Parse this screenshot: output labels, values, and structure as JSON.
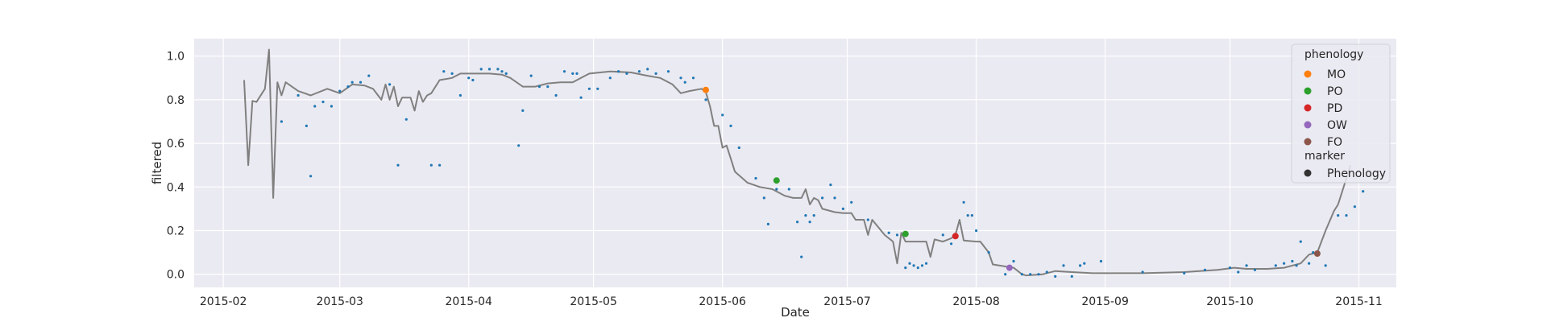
{
  "chart_data": {
    "type": "scatter",
    "xlabel": "Date",
    "ylabel": "filtered",
    "x_range": [
      "2015-01-25",
      "2015-11-10"
    ],
    "ylim": [
      -0.06,
      1.08
    ],
    "x_ticks": [
      "2015-02-01",
      "2015-03-01",
      "2015-04-01",
      "2015-05-01",
      "2015-06-01",
      "2015-07-01",
      "2015-08-01",
      "2015-09-01",
      "2015-10-01",
      "2015-11-01"
    ],
    "x_tick_labels": [
      "2015-02",
      "2015-03",
      "2015-04",
      "2015-05",
      "2015-06",
      "2015-07",
      "2015-08",
      "2015-09",
      "2015-10",
      "2015-11"
    ],
    "y_ticks": [
      0.0,
      0.2,
      0.4,
      0.6,
      0.8,
      1.0
    ],
    "y_tick_labels": [
      "0.0",
      "0.2",
      "0.4",
      "0.6",
      "0.8",
      "1.0"
    ],
    "grid": true,
    "legend_position": "top-right",
    "colors": {
      "background": "#eaeaf2",
      "grid": "#ffffff",
      "line": "#808080",
      "points": "#1f77b4"
    },
    "line_series": {
      "color": "#808080",
      "points": [
        [
          "2015-02-06",
          0.89
        ],
        [
          "2015-02-07",
          0.5
        ],
        [
          "2015-02-08",
          0.795
        ],
        [
          "2015-02-09",
          0.79
        ],
        [
          "2015-02-11",
          0.85
        ],
        [
          "2015-02-12",
          1.03
        ],
        [
          "2015-02-13",
          0.35
        ],
        [
          "2015-02-14",
          0.88
        ],
        [
          "2015-02-15",
          0.82
        ],
        [
          "2015-02-16",
          0.88
        ],
        [
          "2015-02-19",
          0.84
        ],
        [
          "2015-02-22",
          0.82
        ],
        [
          "2015-02-26",
          0.85
        ],
        [
          "2015-03-01",
          0.83
        ],
        [
          "2015-03-04",
          0.87
        ],
        [
          "2015-03-07",
          0.865
        ],
        [
          "2015-03-09",
          0.85
        ],
        [
          "2015-03-11",
          0.8
        ],
        [
          "2015-03-12",
          0.87
        ],
        [
          "2015-03-13",
          0.8
        ],
        [
          "2015-03-14",
          0.86
        ],
        [
          "2015-03-15",
          0.77
        ],
        [
          "2015-03-16",
          0.81
        ],
        [
          "2015-03-18",
          0.81
        ],
        [
          "2015-03-19",
          0.75
        ],
        [
          "2015-03-20",
          0.84
        ],
        [
          "2015-03-21",
          0.79
        ],
        [
          "2015-03-22",
          0.82
        ],
        [
          "2015-03-23",
          0.83
        ],
        [
          "2015-03-25",
          0.89
        ],
        [
          "2015-03-28",
          0.9
        ],
        [
          "2015-03-30",
          0.92
        ],
        [
          "2015-04-03",
          0.92
        ],
        [
          "2015-04-06",
          0.92
        ],
        [
          "2015-04-09",
          0.915
        ],
        [
          "2015-04-11",
          0.9
        ],
        [
          "2015-04-14",
          0.86
        ],
        [
          "2015-04-17",
          0.86
        ],
        [
          "2015-04-20",
          0.875
        ],
        [
          "2015-04-23",
          0.88
        ],
        [
          "2015-04-26",
          0.88
        ],
        [
          "2015-04-28",
          0.9
        ],
        [
          "2015-04-30",
          0.92
        ],
        [
          "2015-05-05",
          0.93
        ],
        [
          "2015-05-10",
          0.925
        ],
        [
          "2015-05-14",
          0.91
        ],
        [
          "2015-05-17",
          0.9
        ],
        [
          "2015-05-20",
          0.87
        ],
        [
          "2015-05-22",
          0.83
        ],
        [
          "2015-05-24",
          0.84
        ],
        [
          "2015-05-27",
          0.85
        ],
        [
          "2015-05-28",
          0.835
        ],
        [
          "2015-05-29",
          0.77
        ],
        [
          "2015-05-30",
          0.68
        ],
        [
          "2015-05-31",
          0.68
        ],
        [
          "2015-06-01",
          0.58
        ],
        [
          "2015-06-02",
          0.59
        ],
        [
          "2015-06-03",
          0.53
        ],
        [
          "2015-06-04",
          0.47
        ],
        [
          "2015-06-07",
          0.42
        ],
        [
          "2015-06-10",
          0.4
        ],
        [
          "2015-06-13",
          0.39
        ],
        [
          "2015-06-16",
          0.36
        ],
        [
          "2015-06-18",
          0.35
        ],
        [
          "2015-06-20",
          0.35
        ],
        [
          "2015-06-21",
          0.39
        ],
        [
          "2015-06-22",
          0.32
        ],
        [
          "2015-06-23",
          0.35
        ],
        [
          "2015-06-24",
          0.34
        ],
        [
          "2015-06-25",
          0.3
        ],
        [
          "2015-06-27",
          0.29
        ],
        [
          "2015-06-28",
          0.285
        ],
        [
          "2015-06-30",
          0.28
        ],
        [
          "2015-07-02",
          0.28
        ],
        [
          "2015-07-03",
          0.25
        ],
        [
          "2015-07-05",
          0.25
        ],
        [
          "2015-07-06",
          0.18
        ],
        [
          "2015-07-07",
          0.25
        ],
        [
          "2015-07-10",
          0.18
        ],
        [
          "2015-07-12",
          0.15
        ],
        [
          "2015-07-13",
          0.05
        ],
        [
          "2015-07-14",
          0.19
        ],
        [
          "2015-07-15",
          0.15
        ],
        [
          "2015-07-17",
          0.15
        ],
        [
          "2015-07-20",
          0.15
        ],
        [
          "2015-07-21",
          0.08
        ],
        [
          "2015-07-22",
          0.16
        ],
        [
          "2015-07-24",
          0.15
        ],
        [
          "2015-07-26",
          0.165
        ],
        [
          "2015-07-27",
          0.18
        ],
        [
          "2015-07-28",
          0.25
        ],
        [
          "2015-07-29",
          0.155
        ],
        [
          "2015-08-01",
          0.15
        ],
        [
          "2015-08-02",
          0.15
        ],
        [
          "2015-08-04",
          0.1
        ],
        [
          "2015-08-05",
          0.045
        ],
        [
          "2015-08-10",
          0.03
        ],
        [
          "2015-08-12",
          0.0
        ],
        [
          "2015-08-13",
          -0.005
        ],
        [
          "2015-08-17",
          0.0
        ],
        [
          "2015-08-20",
          0.015
        ],
        [
          "2015-08-24",
          0.01
        ],
        [
          "2015-08-29",
          0.005
        ],
        [
          "2015-09-10",
          0.005
        ],
        [
          "2015-09-20",
          0.01
        ],
        [
          "2015-09-28",
          0.02
        ],
        [
          "2015-10-02",
          0.03
        ],
        [
          "2015-10-05",
          0.025
        ],
        [
          "2015-10-10",
          0.025
        ],
        [
          "2015-10-14",
          0.03
        ],
        [
          "2015-10-18",
          0.05
        ],
        [
          "2015-10-20",
          0.09
        ],
        [
          "2015-10-22",
          0.1
        ],
        [
          "2015-10-24",
          0.2
        ],
        [
          "2015-10-26",
          0.29
        ],
        [
          "2015-10-27",
          0.32
        ],
        [
          "2015-10-30",
          0.5
        ]
      ]
    },
    "scatter_series": {
      "color": "#1f77b4",
      "points": [
        [
          "2015-02-15",
          0.7
        ],
        [
          "2015-02-19",
          0.82
        ],
        [
          "2015-02-21",
          0.68
        ],
        [
          "2015-02-22",
          0.45
        ],
        [
          "2015-02-23",
          0.77
        ],
        [
          "2015-02-25",
          0.79
        ],
        [
          "2015-02-27",
          0.77
        ],
        [
          "2015-03-01",
          0.84
        ],
        [
          "2015-03-03",
          0.86
        ],
        [
          "2015-03-04",
          0.88
        ],
        [
          "2015-03-06",
          0.88
        ],
        [
          "2015-03-08",
          0.91
        ],
        [
          "2015-03-13",
          0.87
        ],
        [
          "2015-03-15",
          0.5
        ],
        [
          "2015-03-17",
          0.71
        ],
        [
          "2015-03-23",
          0.5
        ],
        [
          "2015-03-25",
          0.5
        ],
        [
          "2015-03-26",
          0.93
        ],
        [
          "2015-03-28",
          0.92
        ],
        [
          "2015-03-30",
          0.82
        ],
        [
          "2015-04-01",
          0.9
        ],
        [
          "2015-04-02",
          0.89
        ],
        [
          "2015-04-04",
          0.94
        ],
        [
          "2015-04-06",
          0.94
        ],
        [
          "2015-04-08",
          0.94
        ],
        [
          "2015-04-09",
          0.93
        ],
        [
          "2015-04-10",
          0.92
        ],
        [
          "2015-04-13",
          0.59
        ],
        [
          "2015-04-14",
          0.75
        ],
        [
          "2015-04-16",
          0.91
        ],
        [
          "2015-04-18",
          0.86
        ],
        [
          "2015-04-20",
          0.86
        ],
        [
          "2015-04-22",
          0.82
        ],
        [
          "2015-04-24",
          0.93
        ],
        [
          "2015-04-26",
          0.92
        ],
        [
          "2015-04-27",
          0.92
        ],
        [
          "2015-04-28",
          0.81
        ],
        [
          "2015-04-30",
          0.85
        ],
        [
          "2015-05-02",
          0.85
        ],
        [
          "2015-05-05",
          0.9
        ],
        [
          "2015-05-07",
          0.93
        ],
        [
          "2015-05-09",
          0.92
        ],
        [
          "2015-05-12",
          0.93
        ],
        [
          "2015-05-14",
          0.94
        ],
        [
          "2015-05-16",
          0.92
        ],
        [
          "2015-05-19",
          0.93
        ],
        [
          "2015-05-22",
          0.9
        ],
        [
          "2015-05-23",
          0.88
        ],
        [
          "2015-05-25",
          0.9
        ],
        [
          "2015-05-28",
          0.8
        ],
        [
          "2015-06-01",
          0.73
        ],
        [
          "2015-06-03",
          0.68
        ],
        [
          "2015-06-05",
          0.58
        ],
        [
          "2015-06-09",
          0.44
        ],
        [
          "2015-06-11",
          0.35
        ],
        [
          "2015-06-12",
          0.23
        ],
        [
          "2015-06-14",
          0.39
        ],
        [
          "2015-06-17",
          0.39
        ],
        [
          "2015-06-19",
          0.24
        ],
        [
          "2015-06-20",
          0.08
        ],
        [
          "2015-06-21",
          0.27
        ],
        [
          "2015-06-22",
          0.24
        ],
        [
          "2015-06-23",
          0.27
        ],
        [
          "2015-06-25",
          0.35
        ],
        [
          "2015-06-27",
          0.41
        ],
        [
          "2015-06-28",
          0.35
        ],
        [
          "2015-06-30",
          0.3
        ],
        [
          "2015-07-02",
          0.33
        ],
        [
          "2015-07-06",
          0.25
        ],
        [
          "2015-07-11",
          0.19
        ],
        [
          "2015-07-13",
          0.18
        ],
        [
          "2015-07-15",
          0.03
        ],
        [
          "2015-07-16",
          0.05
        ],
        [
          "2015-07-17",
          0.04
        ],
        [
          "2015-07-18",
          0.03
        ],
        [
          "2015-07-19",
          0.04
        ],
        [
          "2015-07-20",
          0.05
        ],
        [
          "2015-07-24",
          0.18
        ],
        [
          "2015-07-26",
          0.14
        ],
        [
          "2015-07-29",
          0.33
        ],
        [
          "2015-07-30",
          0.27
        ],
        [
          "2015-07-31",
          0.27
        ],
        [
          "2015-08-01",
          0.2
        ],
        [
          "2015-08-04",
          0.1
        ],
        [
          "2015-08-08",
          0.0
        ],
        [
          "2015-08-10",
          0.06
        ],
        [
          "2015-08-12",
          0.0
        ],
        [
          "2015-08-14",
          0.0
        ],
        [
          "2015-08-16",
          0.0
        ],
        [
          "2015-08-18",
          0.01
        ],
        [
          "2015-08-20",
          -0.01
        ],
        [
          "2015-08-22",
          0.04
        ],
        [
          "2015-08-24",
          -0.01
        ],
        [
          "2015-08-26",
          0.04
        ],
        [
          "2015-08-27",
          0.05
        ],
        [
          "2015-08-31",
          0.06
        ],
        [
          "2015-09-10",
          0.01
        ],
        [
          "2015-09-20",
          0.005
        ],
        [
          "2015-09-25",
          0.02
        ],
        [
          "2015-10-01",
          0.03
        ],
        [
          "2015-10-03",
          0.01
        ],
        [
          "2015-10-05",
          0.04
        ],
        [
          "2015-10-07",
          0.02
        ],
        [
          "2015-10-12",
          0.04
        ],
        [
          "2015-10-14",
          0.05
        ],
        [
          "2015-10-16",
          0.06
        ],
        [
          "2015-10-17",
          0.04
        ],
        [
          "2015-10-18",
          0.15
        ],
        [
          "2015-10-20",
          0.05
        ],
        [
          "2015-10-21",
          0.1
        ],
        [
          "2015-10-24",
          0.04
        ],
        [
          "2015-10-27",
          0.27
        ],
        [
          "2015-10-29",
          0.27
        ],
        [
          "2015-10-31",
          0.31
        ],
        [
          "2015-11-02",
          0.38
        ]
      ]
    },
    "phenology_points": [
      {
        "label": "MO",
        "date": "2015-05-28",
        "value": 0.845,
        "color": "#ff7f0e"
      },
      {
        "label": "PO",
        "date": "2015-06-14",
        "value": 0.43,
        "color": "#2ca02c"
      },
      {
        "label": "PD",
        "date": "2015-07-27",
        "value": 0.175,
        "color": "#d62728"
      },
      {
        "label": "OW",
        "date": "2015-08-09",
        "value": 0.03,
        "color": "#9467bd"
      },
      {
        "label": "FO",
        "date": "2015-10-22",
        "value": 0.095,
        "color": "#8c564b"
      },
      {
        "label": "PO",
        "date": "2015-07-15",
        "value": 0.185,
        "color": "#2ca02c"
      }
    ],
    "legend": {
      "title": "phenology",
      "entries": [
        {
          "label": "MO",
          "color": "#ff7f0e"
        },
        {
          "label": "PO",
          "color": "#2ca02c"
        },
        {
          "label": "PD",
          "color": "#d62728"
        },
        {
          "label": "OW",
          "color": "#9467bd"
        },
        {
          "label": "FO",
          "color": "#8c564b"
        }
      ],
      "marker_title": "marker",
      "marker_entries": [
        {
          "label": "Phenology",
          "color": "#333333"
        }
      ]
    }
  }
}
